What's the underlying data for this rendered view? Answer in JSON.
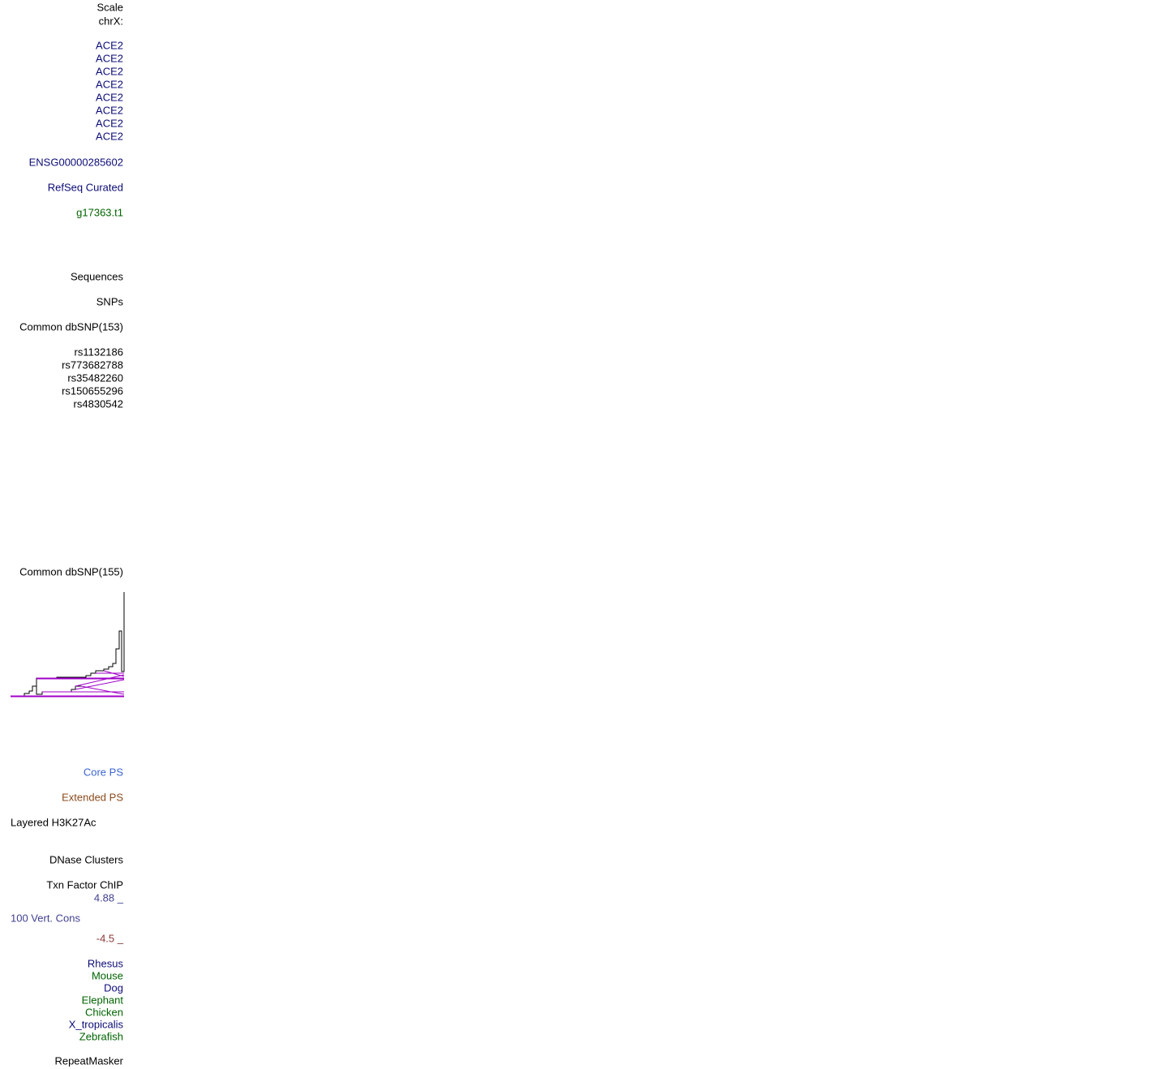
{
  "labels": [
    "Scale",
    "chrX:",
    "ACE2",
    "ACE2",
    "ACE2",
    "ACE2",
    "ACE2",
    "ACE2",
    "ACE2",
    "ACE2",
    "ENSG00000285602",
    "RefSeq Curated",
    "g17363.t1",
    "Sequences",
    "SNPs",
    "Common dbSNP(153)",
    "rs1132186",
    "rs773682788",
    "rs35482260",
    "rs150655296",
    "rs4830542",
    "Common dbSNP(155)",
    "Core PS",
    "Extended PS",
    "Layered H3K27Ac",
    "DNase Clusters",
    "Txn Factor ChIP",
    "4.88 _",
    "100 Vert. Cons",
    "-4.5 _",
    "Rhesus",
    "Mouse",
    "Dog",
    "Elephant",
    "Chicken",
    "X_tropicalis",
    "Zebrafish",
    "RepeatMasker"
  ]
}
